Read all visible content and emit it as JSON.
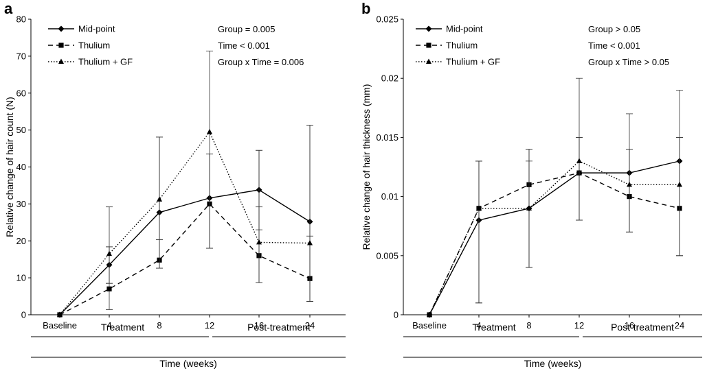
{
  "chart_data": [
    {
      "panel": "a",
      "type": "line",
      "title": "",
      "ylabel": "Relative change of hair count (N)",
      "xlabel": "Time (weeks)",
      "ylim": [
        0,
        80
      ],
      "yticks": [
        0,
        10,
        20,
        30,
        40,
        50,
        60,
        70,
        80
      ],
      "categories": [
        "Baseline",
        "4",
        "8",
        "12",
        "16",
        "24"
      ],
      "phases": [
        {
          "label": "Treatment",
          "from": "Baseline",
          "to": "12"
        },
        {
          "label": "Post-treatment",
          "from": "12",
          "to": "24"
        }
      ],
      "series": [
        {
          "name": "Mid-point",
          "style": "solid",
          "marker": "diamond",
          "values": [
            0,
            13.5,
            27.7,
            31.6,
            33.8,
            25.2
          ],
          "error_upper": [
            0,
            18.4,
            48.1,
            43.5,
            44.5,
            51.3
          ],
          "error_lower": [
            0,
            8.5,
            20.3,
            18.0,
            23.0,
            3.6
          ]
        },
        {
          "name": "Thulium",
          "style": "dashed",
          "marker": "square",
          "values": [
            0,
            7.0,
            14.8,
            30.0,
            16.0,
            9.8
          ],
          "error_upper": [
            0,
            18.4,
            20.3,
            43.5,
            29.2,
            21.3
          ],
          "error_lower": [
            0,
            1.4,
            12.6,
            18.0,
            8.7,
            3.6
          ]
        },
        {
          "name": "Thulium + GF",
          "style": "dotted",
          "marker": "triangle",
          "values": [
            0,
            16.5,
            31.2,
            49.5,
            19.6,
            19.4
          ],
          "error_upper": [
            0,
            29.2,
            48.1,
            71.4,
            44.5,
            51.3
          ],
          "error_lower": [
            0,
            8.5,
            12.6,
            18.0,
            8.7,
            3.6
          ]
        }
      ],
      "legend_position": "top-left",
      "annotations": [
        "Group = 0.005",
        "Time < 0.001",
        "Group x Time = 0.006"
      ]
    },
    {
      "panel": "b",
      "type": "line",
      "title": "",
      "ylabel": "Relative change of hair thickness (mm)",
      "xlabel": "Time (weeks)",
      "ylim": [
        0,
        0.025
      ],
      "yticks": [
        "0",
        "0.005",
        "0.01",
        "0.015",
        "0.02",
        "0.025"
      ],
      "categories": [
        "Baseline",
        "4",
        "8",
        "12",
        "16",
        "24"
      ],
      "phases": [
        {
          "label": "Treatment",
          "from": "Baseline",
          "to": "12"
        },
        {
          "label": "Post-treatment",
          "from": "12",
          "to": "24"
        }
      ],
      "series": [
        {
          "name": "Mid-point",
          "style": "solid",
          "marker": "diamond",
          "values": [
            0,
            0.008,
            0.009,
            0.012,
            0.012,
            0.013
          ],
          "error_upper": [
            0,
            0.013,
            0.014,
            0.02,
            0.017,
            0.019
          ],
          "error_lower": [
            0,
            0.001,
            0.004,
            0.008,
            0.007,
            0.005
          ]
        },
        {
          "name": "Thulium",
          "style": "dashed",
          "marker": "square",
          "values": [
            0,
            0.009,
            0.011,
            0.012,
            0.01,
            0.009
          ],
          "error_upper": [
            0,
            0.013,
            0.014,
            0.015,
            0.014,
            0.015
          ],
          "error_lower": [
            0,
            0.001,
            0.004,
            0.008,
            0.007,
            0.005
          ]
        },
        {
          "name": "Thulium + GF",
          "style": "dotted",
          "marker": "triangle",
          "values": [
            0,
            0.009,
            0.009,
            0.013,
            0.011,
            0.011
          ],
          "error_upper": [
            0,
            0.013,
            0.013,
            0.015,
            0.014,
            0.015
          ],
          "error_lower": [
            0,
            0.001,
            0.004,
            0.008,
            0.007,
            0.005
          ]
        }
      ],
      "legend_position": "top-left",
      "annotations": [
        "Group > 0.05",
        "Time < 0.001",
        "Group x Time > 0.05"
      ]
    }
  ]
}
